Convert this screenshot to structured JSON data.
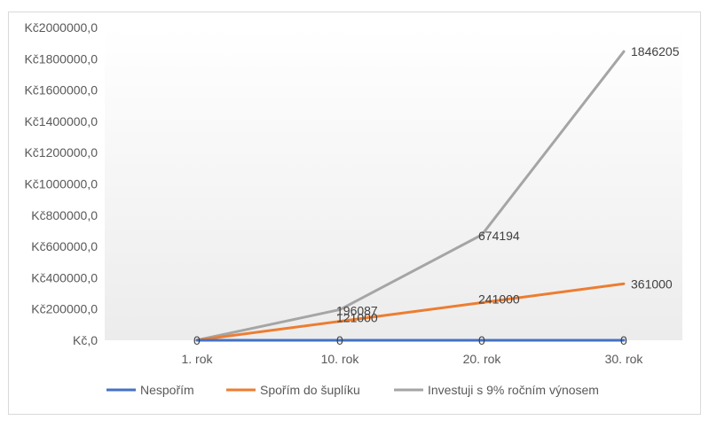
{
  "chart_data": {
    "type": "line",
    "categories": [
      "1. rok",
      "10. rok",
      "20. rok",
      "30. rok"
    ],
    "series": [
      {
        "name": "Nespořím",
        "values": [
          0,
          0,
          0,
          0
        ],
        "labels": [
          "0",
          "0",
          "0",
          "0"
        ],
        "color": "#4472c4"
      },
      {
        "name": "Spořím do šuplíku",
        "values": [
          1000,
          121000,
          241000,
          361000
        ],
        "labels": [
          "",
          "121000",
          "241000",
          "361000"
        ],
        "color": "#ed7d31"
      },
      {
        "name": "Investuji s 9% ročním výnosem",
        "values": [
          1000,
          196087,
          674194,
          1846205
        ],
        "labels": [
          "",
          "196087",
          "674194",
          "1846205"
        ],
        "color": "#a5a5a5"
      }
    ],
    "ylim": [
      0,
      2000000
    ],
    "yticks": [
      0,
      200000,
      400000,
      600000,
      800000,
      1000000,
      1200000,
      1400000,
      1600000,
      1800000,
      2000000
    ],
    "ytick_labels": [
      "Kč,0",
      "Kč200000,0",
      "Kč400000,0",
      "Kč600000,0",
      "Kč800000,0",
      "Kč1000000,0",
      "Kč1200000,0",
      "Kč1400000,0",
      "Kč1600000,0",
      "Kč1800000,0",
      "Kč2000000,0"
    ],
    "grid": false,
    "legend": "bottom"
  }
}
